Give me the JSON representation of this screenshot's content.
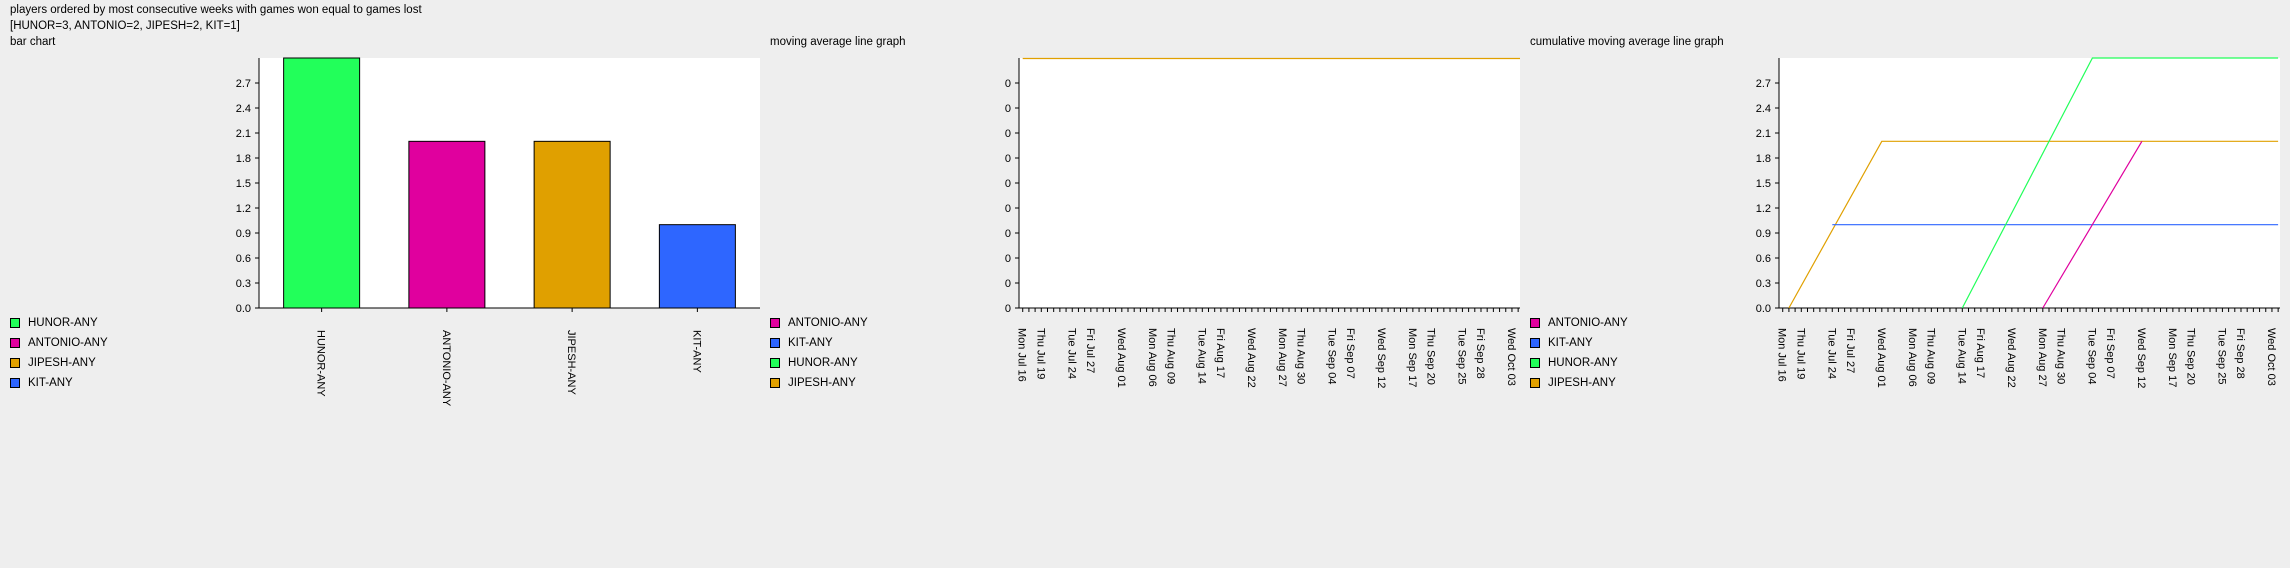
{
  "page": {
    "title": "players ordered by most consecutive weeks with games won equal to games lost",
    "summary": "[HUNOR=3, ANTONIO=2, JIPESH=2, KIT=1]"
  },
  "chart_data": [
    {
      "type": "bar",
      "title": "bar chart",
      "categories": [
        "HUNOR-ANY",
        "ANTONIO-ANY",
        "JIPESH-ANY",
        "KIT-ANY"
      ],
      "values": [
        3,
        2,
        2,
        1
      ],
      "colors": [
        "#22ff5a",
        "#e0009e",
        "#e0a000",
        "#2e66ff"
      ],
      "yticks": [
        "0.0",
        "0.3",
        "0.6",
        "0.9",
        "1.2",
        "1.5",
        "1.8",
        "2.1",
        "2.4",
        "2.7"
      ],
      "ylim": [
        0,
        3
      ],
      "legend": [
        {
          "label": "HUNOR-ANY",
          "color": "#22ff5a"
        },
        {
          "label": "ANTONIO-ANY",
          "color": "#e0009e"
        },
        {
          "label": "JIPESH-ANY",
          "color": "#e0a000"
        },
        {
          "label": "KIT-ANY",
          "color": "#2e66ff"
        }
      ]
    },
    {
      "type": "line",
      "title": "moving average line graph",
      "x_labels": [
        "Mon Jul 16",
        "Thu Jul 19",
        "Tue Jul 24",
        "Fri Jul 27",
        "Wed Aug 01",
        "Mon Aug 06",
        "Thu Aug 09",
        "Tue Aug 14",
        "Fri Aug 17",
        "Wed Aug 22",
        "Mon Aug 27",
        "Thu Aug 30",
        "Tue Sep 04",
        "Fri Sep 07",
        "Wed Sep 12",
        "Mon Sep 17",
        "Thu Sep 20",
        "Tue Sep 25",
        "Fri Sep 28",
        "Wed Oct 03"
      ],
      "yticks": [
        "0",
        "0",
        "0",
        "0",
        "0",
        "0",
        "0",
        "0",
        "0",
        "0"
      ],
      "series": [
        {
          "name": "JIPESH-ANY",
          "color": "#e0a000",
          "values": [
            0,
            0,
            0,
            0,
            0,
            0,
            0,
            0,
            0,
            0,
            0,
            0,
            0,
            0,
            0,
            0,
            0,
            0,
            0,
            0
          ]
        }
      ],
      "legend": [
        {
          "label": "ANTONIO-ANY",
          "color": "#e0009e"
        },
        {
          "label": "KIT-ANY",
          "color": "#2e66ff"
        },
        {
          "label": "HUNOR-ANY",
          "color": "#22ff5a"
        },
        {
          "label": "JIPESH-ANY",
          "color": "#e0a000"
        }
      ]
    },
    {
      "type": "line",
      "title": "cumulative moving average line graph",
      "x_labels": [
        "Mon Jul 16",
        "Thu Jul 19",
        "Tue Jul 24",
        "Fri Jul 27",
        "Wed Aug 01",
        "Mon Aug 06",
        "Thu Aug 09",
        "Tue Aug 14",
        "Fri Aug 17",
        "Wed Aug 22",
        "Mon Aug 27",
        "Thu Aug 30",
        "Tue Sep 04",
        "Fri Sep 07",
        "Wed Sep 12",
        "Mon Sep 17",
        "Thu Sep 20",
        "Tue Sep 25",
        "Fri Sep 28",
        "Wed Oct 03"
      ],
      "yticks": [
        "0.0",
        "0.3",
        "0.6",
        "0.9",
        "1.2",
        "1.5",
        "1.8",
        "2.1",
        "2.4",
        "2.7"
      ],
      "ylim": [
        0,
        3
      ],
      "series": [
        {
          "name": "JIPESH-ANY",
          "color": "#e0a000",
          "points": [
            [
              "Tue Jul 17",
              0
            ],
            [
              "Wed Aug 01",
              2
            ],
            [
              "Thu Oct 04",
              2
            ]
          ]
        },
        {
          "name": "KIT-ANY",
          "color": "#2e66ff",
          "points": [
            [
              "Tue Jul 24",
              1
            ],
            [
              "Thu Oct 04",
              1
            ]
          ]
        },
        {
          "name": "HUNOR-ANY",
          "color": "#22ff5a",
          "points": [
            [
              "Tue Aug 14",
              0
            ],
            [
              "Tue Sep 04",
              3
            ],
            [
              "Thu Oct 04",
              3
            ]
          ]
        },
        {
          "name": "ANTONIO-ANY",
          "color": "#e0009e",
          "points": [
            [
              "Mon Aug 27",
              0
            ],
            [
              "Wed Sep 12",
              2
            ]
          ]
        }
      ],
      "legend": [
        {
          "label": "ANTONIO-ANY",
          "color": "#e0009e"
        },
        {
          "label": "KIT-ANY",
          "color": "#2e66ff"
        },
        {
          "label": "HUNOR-ANY",
          "color": "#22ff5a"
        },
        {
          "label": "JIPESH-ANY",
          "color": "#e0a000"
        }
      ]
    }
  ]
}
